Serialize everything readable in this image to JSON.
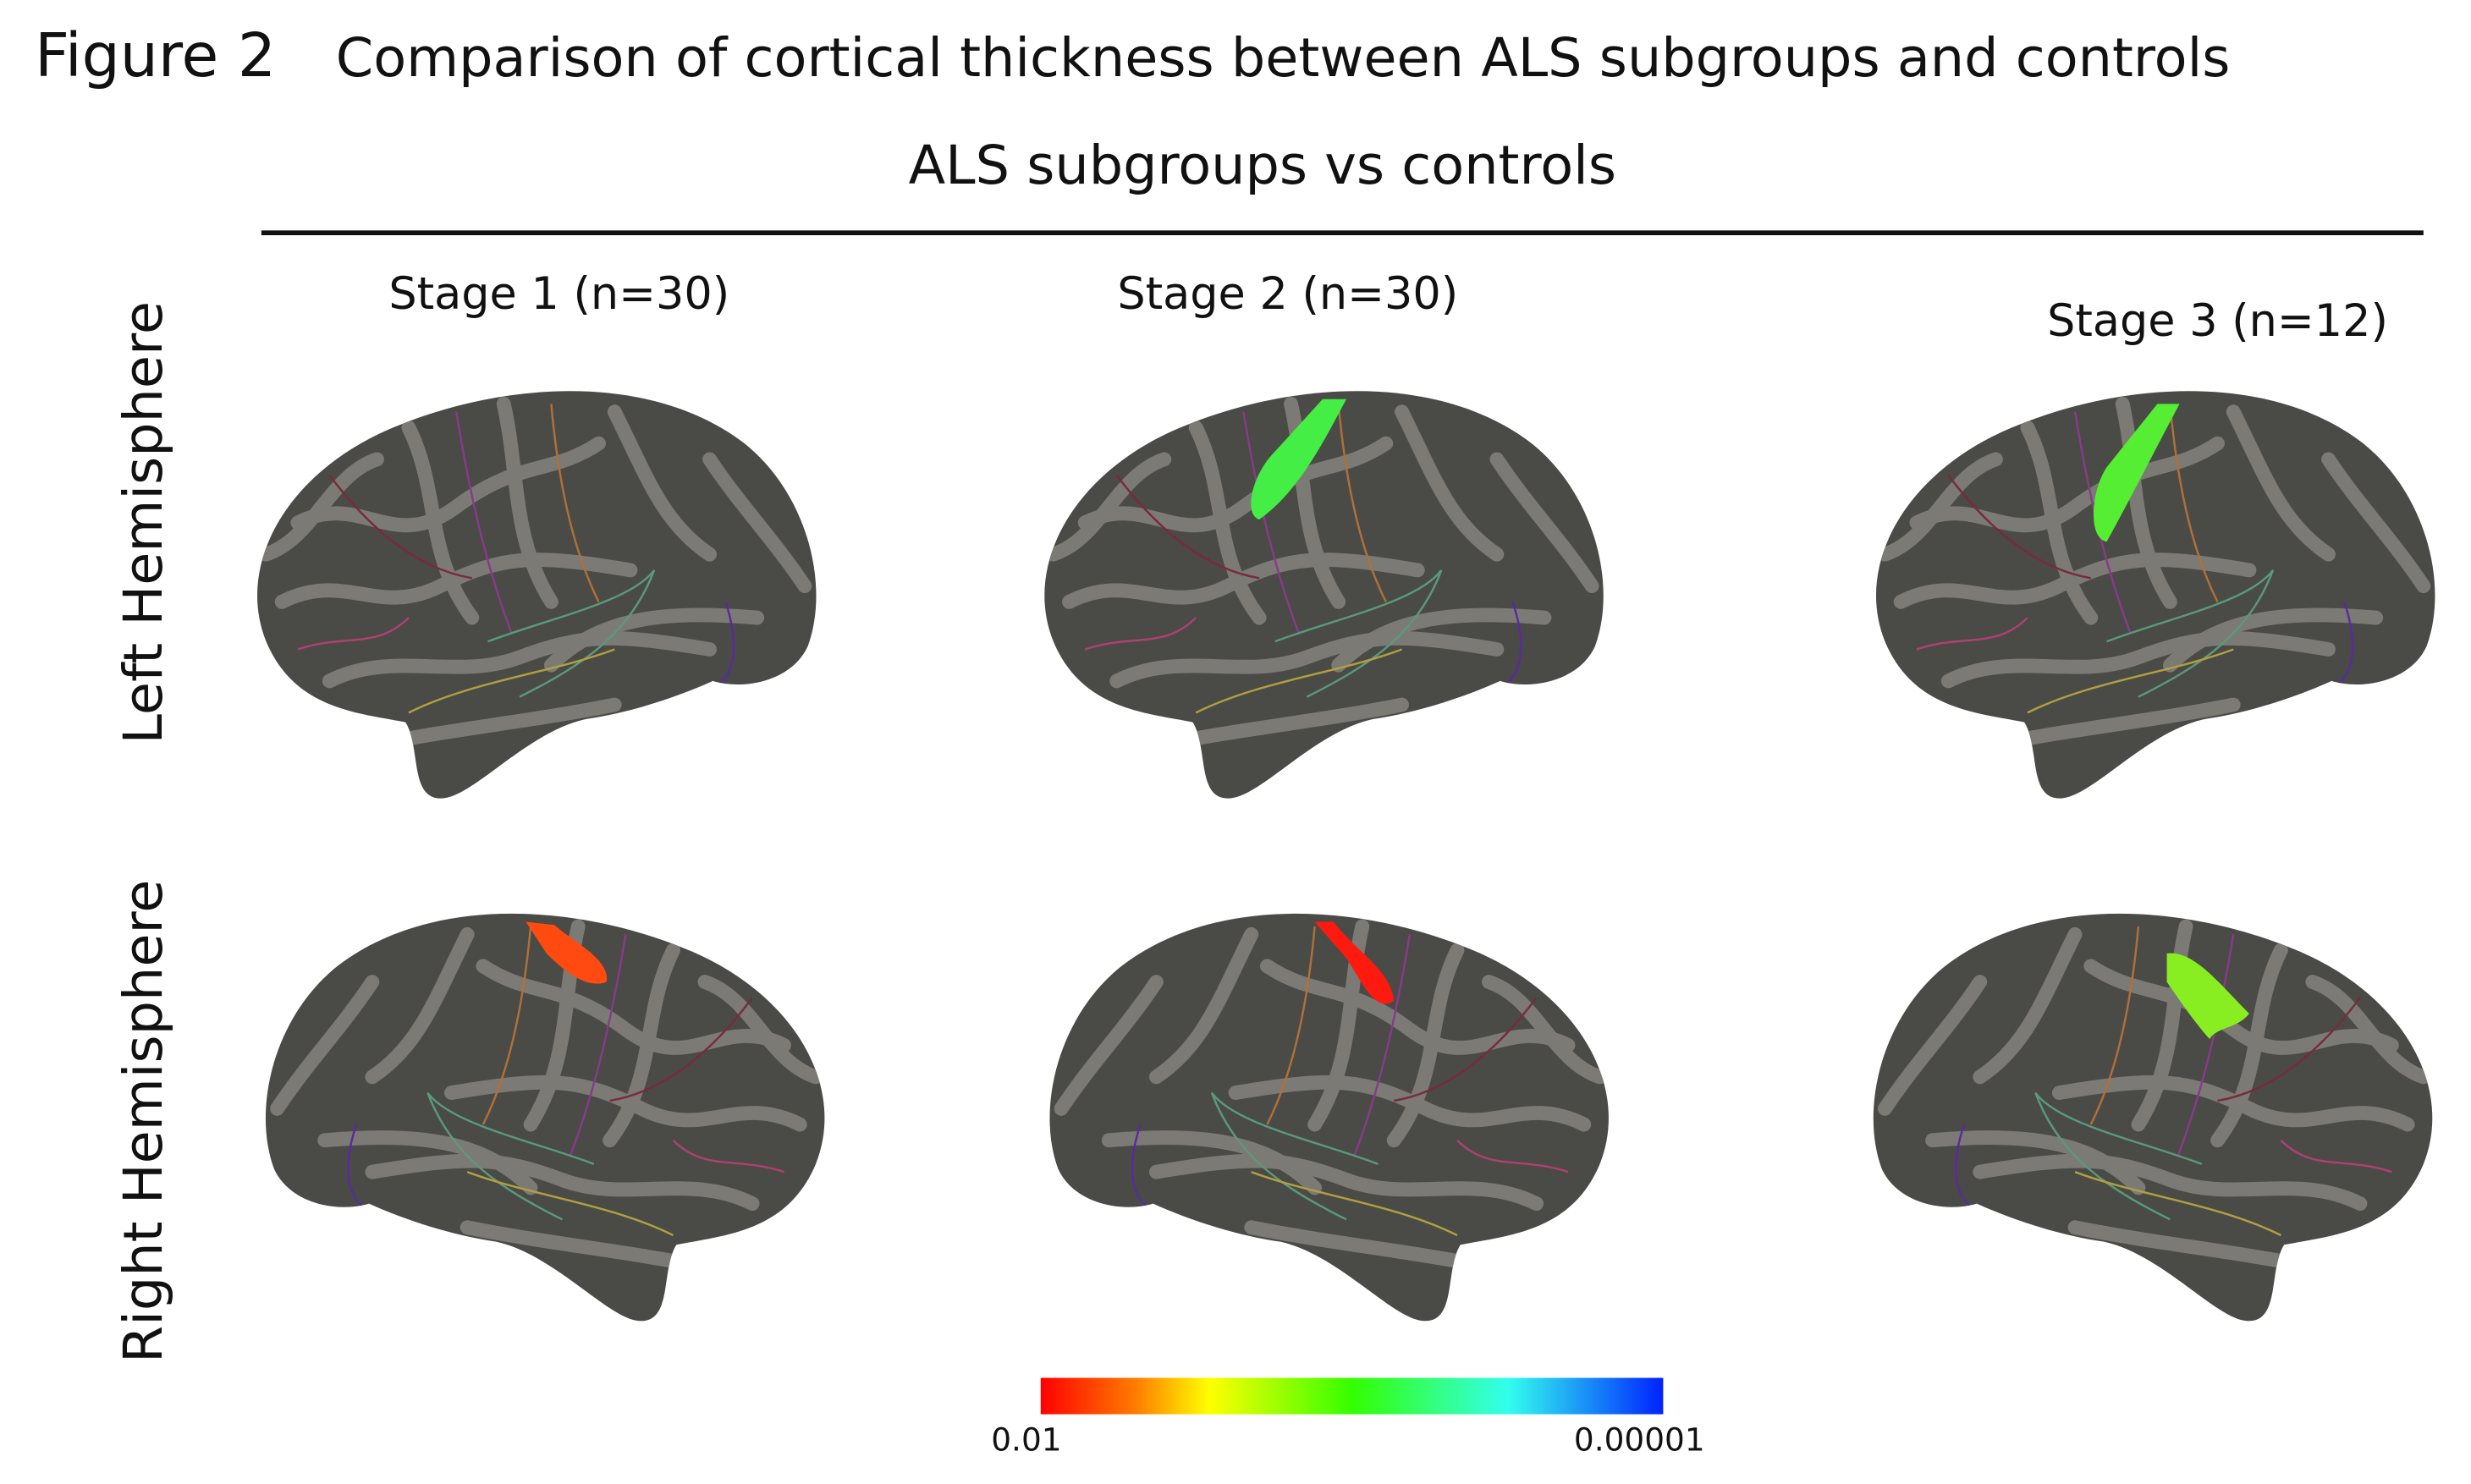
{
  "figure": {
    "label": "Figure 2",
    "title": "Comparison of cortical thickness between ALS subgroups and controls",
    "subtitle": "ALS subgroups vs controls",
    "columns": [
      "Stage 1  (n=30)",
      "Stage 2  (n=30)",
      "Stage 3  (n=12)"
    ],
    "rows": [
      "Left Hemisphere",
      "Right  Hemisphere"
    ],
    "colorbar": {
      "min_label": "0.01",
      "max_label": "0.00001"
    }
  }
}
